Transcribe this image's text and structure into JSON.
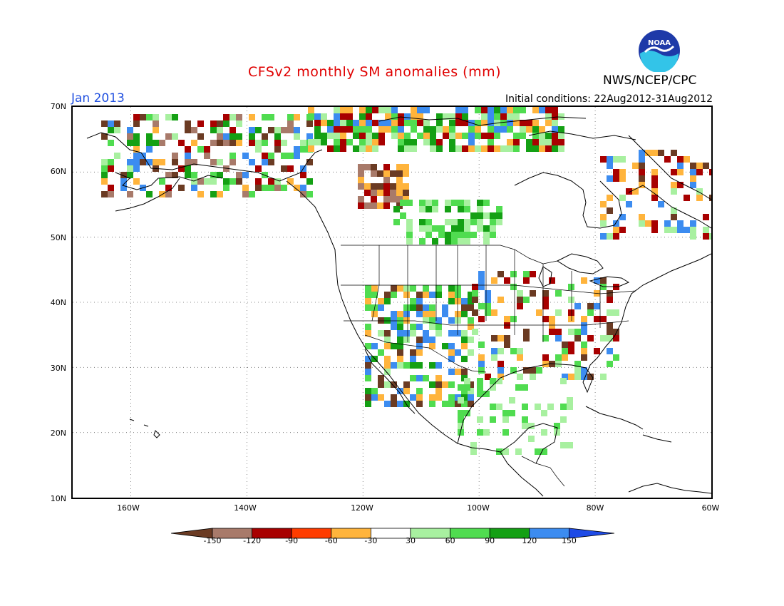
{
  "header": {
    "title": "CFSv2 monthly SM anomalies (mm)",
    "month": "Jan 2013",
    "initial_conditions": "Initial conditions: 22Aug2012-31Aug2012",
    "agency": "NWS/NCEP/CPC",
    "logo_text": "NOAA"
  },
  "axes": {
    "lat_labels": [
      "70N",
      "60N",
      "50N",
      "40N",
      "30N",
      "20N",
      "10N"
    ],
    "lon_labels": [
      "160W",
      "140W",
      "120W",
      "100W",
      "80W",
      "60W"
    ],
    "lat_range": [
      10,
      70
    ],
    "lon_range": [
      -170,
      -60
    ],
    "grid": "dotted"
  },
  "legend": {
    "labels": [
      "-150",
      "-120",
      "-90",
      "-60",
      "-30",
      "30",
      "60",
      "90",
      "120",
      "150"
    ],
    "colors": [
      "#6b3b23",
      "#a87a6a",
      "#a80000",
      "#ff3c00",
      "#ffb43c",
      "#ffffff",
      "#a8f0a0",
      "#50dc50",
      "#14a014",
      "#3c8cf0",
      "#1e4be6"
    ]
  },
  "colors": {
    "dry_brown": "#6b3b23",
    "dry_tan": "#a87a6a",
    "dry_red": "#a80000",
    "dry_orange": "#ff3c00",
    "dry_yellow": "#ffb43c",
    "wet_light": "#a8f0a0",
    "wet_mid": "#50dc50",
    "wet_dark": "#14a014",
    "wet_blue": "#3c8cf0"
  }
}
